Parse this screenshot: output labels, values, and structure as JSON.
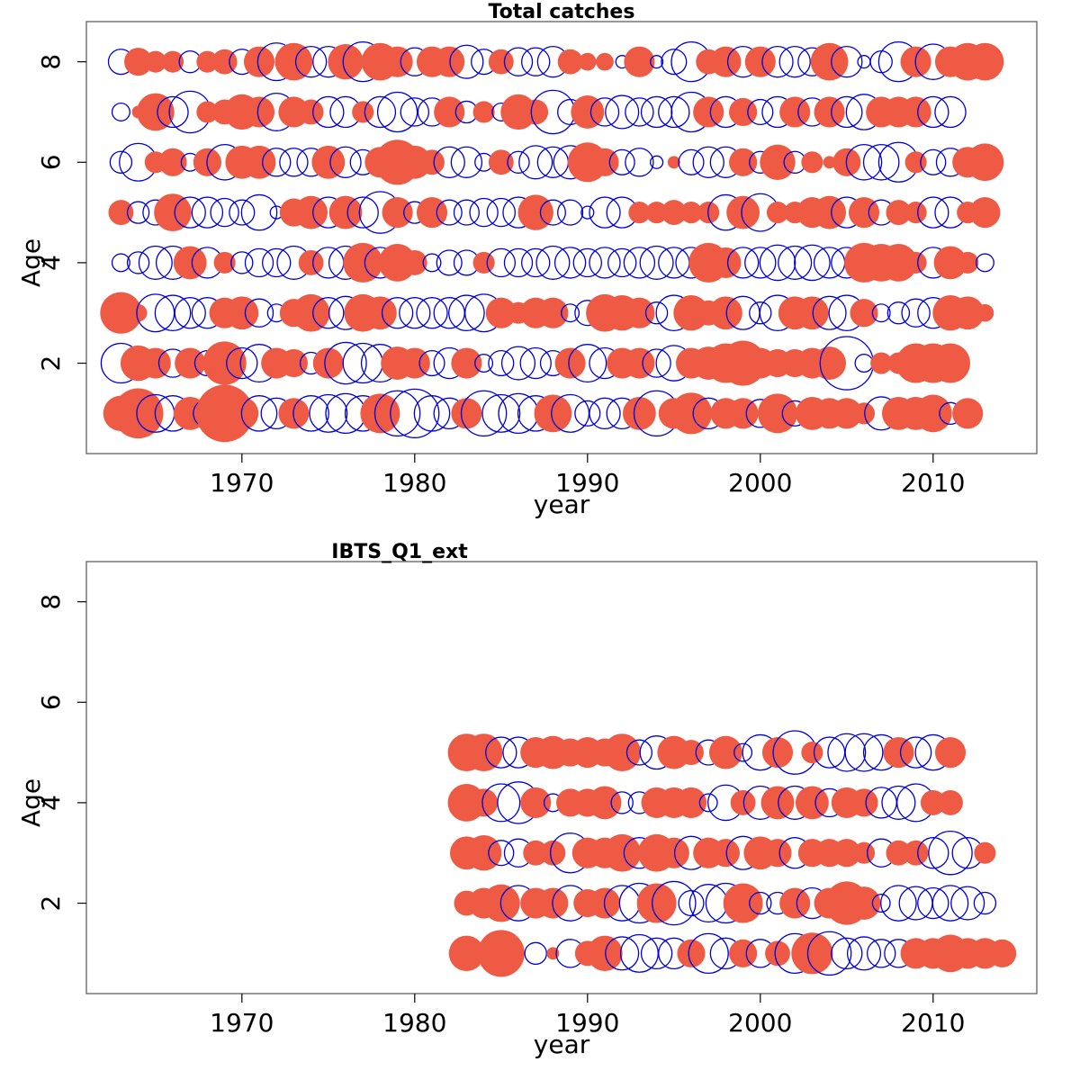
{
  "chart_data": [
    {
      "type": "scatter",
      "subtype": "bubble-residuals",
      "title": "Total catches",
      "xlabel": "year",
      "ylabel": "Age",
      "xlim": [
        1961,
        2016
      ],
      "ylim": [
        0.2,
        8.8
      ],
      "xticks": [
        1970,
        1980,
        1990,
        2000,
        2010
      ],
      "yticks": [
        2,
        4,
        6,
        8
      ],
      "grid": false,
      "colors": {
        "positive": "#ee5a44",
        "negative": "#0000dd"
      },
      "years": [
        1963,
        1964,
        1965,
        1966,
        1967,
        1968,
        1969,
        1970,
        1971,
        1972,
        1973,
        1974,
        1975,
        1976,
        1977,
        1978,
        1979,
        1980,
        1981,
        1982,
        1983,
        1984,
        1985,
        1986,
        1987,
        1988,
        1989,
        1990,
        1991,
        1992,
        1993,
        1994,
        1995,
        1996,
        1997,
        1998,
        1999,
        2000,
        2001,
        2002,
        2003,
        2004,
        2005,
        2006,
        2007,
        2008,
        2009,
        2010,
        2011,
        2012,
        2013
      ],
      "residuals": {
        "1": [
          0.8,
          1.6,
          -0.9,
          -0.8,
          0.7,
          -0.5,
          2.1,
          0.7,
          -0.8,
          -0.6,
          0.6,
          -0.8,
          -0.9,
          -1.0,
          -0.8,
          1.0,
          -1.3,
          -1.5,
          -0.8,
          -0.6,
          0.6,
          -1.3,
          -0.9,
          -1.0,
          -0.8,
          0.9,
          -0.9,
          -0.4,
          -0.6,
          -0.6,
          0.7,
          -1.3,
          0.6,
          1.1,
          -0.6,
          0.6,
          0.6,
          -0.5,
          1.0,
          -0.4,
          0.7,
          0.6,
          0.6,
          0.3,
          -0.7,
          0.7,
          0.7,
          0.9,
          -0.3,
          0.6
        ],
        "2": [
          -1.0,
          0.8,
          0.6,
          -0.5,
          0.6,
          -0.4,
          1.2,
          -0.6,
          -0.9,
          0.6,
          0.5,
          -0.3,
          0.6,
          -1.1,
          -1.0,
          -0.9,
          0.7,
          0.6,
          -0.4,
          -0.6,
          0.6,
          -0.2,
          -0.4,
          -0.7,
          -0.6,
          -0.4,
          0.6,
          -0.9,
          -0.6,
          0.6,
          0.6,
          -0.5,
          -0.8,
          0.6,
          0.7,
          1.0,
          1.3,
          0.6,
          0.5,
          0.5,
          0.6,
          0.7,
          -1.8,
          -0.2,
          0.3,
          0.3,
          1.0,
          1.0,
          1.0
        ],
        "3": [
          1.1,
          0.2,
          -0.9,
          -0.8,
          -0.6,
          -0.6,
          0.6,
          0.7,
          -0.5,
          -0.2,
          0.5,
          0.9,
          -0.6,
          -0.7,
          0.9,
          0.7,
          -0.6,
          -0.6,
          -0.6,
          -0.6,
          -0.8,
          -0.9,
          0.6,
          0.3,
          0.6,
          0.6,
          -0.2,
          -0.4,
          0.9,
          0.8,
          0.6,
          -0.3,
          -0.8,
          0.8,
          0.4,
          0.7,
          -0.7,
          -0.3,
          -0.8,
          0.7,
          0.7,
          -0.7,
          -0.8,
          0.5,
          -0.2,
          -0.3,
          -0.5,
          -0.6,
          0.8,
          0.7,
          0.2
        ],
        "4": [
          -0.2,
          -0.3,
          -0.7,
          -0.7,
          0.7,
          -0.6,
          0.3,
          -0.3,
          -0.5,
          -0.5,
          -0.7,
          0.4,
          -0.6,
          -0.7,
          1.0,
          -0.6,
          0.9,
          0.4,
          -0.2,
          -0.4,
          -0.4,
          0.3,
          -0.5,
          -0.5,
          -0.5,
          -0.7,
          -0.6,
          -0.5,
          -0.6,
          -0.5,
          -0.6,
          -0.7,
          -0.6,
          -0.6,
          1.0,
          0.6,
          -0.6,
          -0.6,
          -0.8,
          -0.7,
          -0.8,
          -0.6,
          -0.6,
          1.0,
          0.9,
          0.9,
          0.3,
          -0.6,
          0.7,
          0.3,
          -0.2
        ],
        "5": [
          0.4,
          -0.3,
          -0.4,
          0.9,
          -0.6,
          -0.6,
          -0.5,
          -0.4,
          -0.8,
          -0.1,
          0.5,
          0.7,
          -0.6,
          0.7,
          -0.6,
          -1.1,
          0.6,
          -0.3,
          0.6,
          -0.4,
          -0.4,
          -0.5,
          -0.5,
          -0.6,
          0.8,
          -0.4,
          -0.4,
          -0.1,
          -0.6,
          -0.6,
          0.3,
          0.3,
          0.4,
          0.3,
          0.3,
          -0.8,
          0.7,
          -0.9,
          0.3,
          0.3,
          0.6,
          0.7,
          -0.6,
          0.6,
          -0.4,
          0.4,
          0.3,
          -0.6,
          -0.6,
          0.3,
          0.6
        ],
        "6": [
          -0.3,
          -0.9,
          0.3,
          0.5,
          -0.2,
          0.5,
          -0.8,
          0.7,
          0.7,
          -0.5,
          -0.5,
          -0.5,
          0.7,
          -0.6,
          -0.4,
          0.6,
          1.3,
          0.7,
          0.4,
          -0.6,
          -0.6,
          -0.2,
          0.4,
          -0.3,
          -0.7,
          -0.6,
          -0.7,
          1.0,
          0.5,
          -0.4,
          -0.5,
          -0.1,
          0.1,
          -0.4,
          -0.6,
          -0.6,
          0.5,
          -0.3,
          0.8,
          -0.3,
          0.3,
          0.1,
          0.5,
          -0.8,
          -0.8,
          -1.0,
          0.3,
          -0.4,
          -0.5,
          0.6,
          0.9
        ],
        "7": [
          -0.2,
          0.1,
          0.9,
          -0.6,
          -1.1,
          0.3,
          0.4,
          0.8,
          0.6,
          -0.9,
          0.6,
          0.4,
          -0.6,
          -0.6,
          0.3,
          -0.6,
          -1.0,
          -0.5,
          -0.5,
          0.6,
          -0.3,
          0.3,
          -0.2,
          0.8,
          0.4,
          -1.2,
          -0.4,
          0.7,
          -0.5,
          -0.7,
          -0.5,
          -0.6,
          -0.6,
          -1.0,
          0.6,
          -0.6,
          0.5,
          -0.4,
          -0.6,
          0.6,
          -0.5,
          0.6,
          -0.6,
          -0.8,
          0.6,
          0.6,
          0.6,
          -0.6,
          -0.6
        ],
        "8": [
          -0.4,
          0.5,
          0.3,
          0.3,
          -0.3,
          0.3,
          0.4,
          -0.4,
          0.6,
          -0.9,
          0.9,
          -0.6,
          -0.6,
          0.8,
          -1.0,
          0.9,
          0.6,
          -0.5,
          0.6,
          0.6,
          -0.7,
          -0.4,
          0.4,
          -0.5,
          -0.5,
          -0.6,
          0.4,
          0.2,
          0.2,
          -0.1,
          0.6,
          -0.1,
          -0.4,
          -1.0,
          0.4,
          0.6,
          -0.6,
          0.6,
          -0.6,
          -0.6,
          -0.5,
          0.9,
          -0.6,
          -0.1,
          -0.3,
          -1.0,
          0.6,
          -0.8,
          0.6,
          0.9,
          0.9
        ]
      }
    },
    {
      "type": "scatter",
      "subtype": "bubble-residuals",
      "title": "IBTS_Q1_ext",
      "xlabel": "year",
      "ylabel": "Age",
      "xlim": [
        1961,
        2016
      ],
      "ylim": [
        0.2,
        8.8
      ],
      "xticks": [
        1970,
        1980,
        1990,
        2000,
        2010
      ],
      "yticks": [
        2,
        4,
        6,
        8
      ],
      "grid": false,
      "colors": {
        "positive": "#ee5a44",
        "negative": "#0000dd"
      },
      "years": [
        1983,
        1984,
        1985,
        1986,
        1987,
        1988,
        1989,
        1990,
        1991,
        1992,
        1993,
        1994,
        1995,
        1996,
        1997,
        1998,
        1999,
        2000,
        2001,
        2002,
        2003,
        2004,
        2005,
        2006,
        2007,
        2008,
        2009,
        2010,
        2011,
        2012,
        2013,
        2014
      ],
      "residuals": {
        "1": [
          0.8,
          0.1,
          1.4,
          0.1,
          -0.3,
          0.1,
          -0.5,
          0.4,
          0.8,
          -0.7,
          -0.9,
          -0.6,
          -0.6,
          0.5,
          -1.0,
          -0.6,
          0.5,
          -0.5,
          0.4,
          -1.0,
          1.1,
          -1.2,
          -0.6,
          -0.7,
          -0.5,
          -0.5,
          0.6,
          0.6,
          0.9,
          0.6,
          0.6,
          0.5
        ],
        "2": [
          0.4,
          0.6,
          0.9,
          -0.8,
          0.6,
          0.6,
          -0.8,
          0.5,
          0.6,
          -0.8,
          -1.0,
          1.0,
          -1.2,
          -0.4,
          -0.9,
          -1.0,
          1.0,
          -0.3,
          -0.3,
          0.6,
          -0.6,
          0.6,
          1.2,
          0.7,
          -0.2,
          -0.8,
          -0.7,
          -0.6,
          -0.8,
          -0.7,
          -0.3
        ],
        "3": [
          0.7,
          0.8,
          -0.4,
          -0.5,
          0.4,
          0.4,
          -1.0,
          0.6,
          0.6,
          0.9,
          -0.6,
          0.9,
          0.6,
          -0.7,
          0.6,
          0.5,
          -0.7,
          0.7,
          0.5,
          -0.6,
          0.5,
          0.5,
          0.5,
          0.3,
          -0.5,
          0.4,
          0.4,
          -0.6,
          -1.2,
          -0.6,
          0.3
        ],
        "4": [
          0.9,
          0.5,
          -0.9,
          -1.1,
          0.6,
          -0.2,
          0.5,
          0.5,
          0.7,
          -0.3,
          -0.3,
          0.6,
          0.6,
          0.6,
          -0.2,
          -0.8,
          0.4,
          -0.7,
          0.7,
          -0.7,
          0.7,
          -0.5,
          0.6,
          0.5,
          -0.6,
          -0.7,
          -0.9,
          0.4,
          0.4
        ],
        "5": [
          0.9,
          0.9,
          -0.6,
          -0.6,
          0.6,
          0.7,
          0.5,
          0.6,
          0.5,
          0.9,
          -0.4,
          -0.7,
          0.7,
          0.4,
          -0.4,
          0.7,
          -0.2,
          -0.8,
          0.6,
          -1.2,
          0.3,
          -0.6,
          -0.9,
          -0.9,
          -0.8,
          0.6,
          -0.6,
          -0.8,
          0.6
        ]
      }
    }
  ]
}
